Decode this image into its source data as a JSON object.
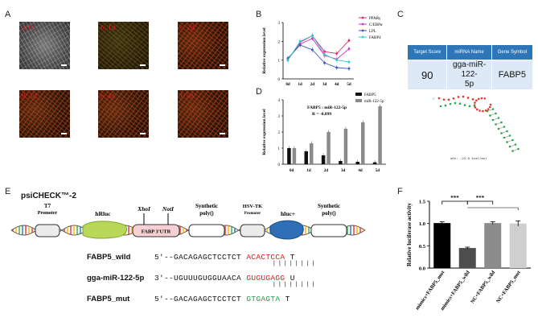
{
  "panels": {
    "A": "A",
    "B": "B",
    "C": "C",
    "D": "D",
    "E": "E",
    "F": "F"
  },
  "panel_a": {
    "images": [
      {
        "label": "a: 0d"
      },
      {
        "label": "b: 1d"
      },
      {
        "label": "c: 2d"
      },
      {
        "label": "d: 3d"
      },
      {
        "label": "e: 4d"
      },
      {
        "label": "f: 5d"
      }
    ]
  },
  "panel_c": {
    "headers": [
      "Target Score",
      "miRNA Name",
      "Gene Symbol"
    ],
    "row": [
      "90",
      "gga-miR-122-\n5p",
      "FABP5"
    ],
    "mfe": "mfe: -22.9 kcal/mol",
    "colors": {
      "header": "#2e76b7",
      "cell": "#dde9f7"
    }
  },
  "panel_e": {
    "vector_name": "psiCHECK™-2",
    "elements": {
      "t7": "T7",
      "t7_sub": "Promoter",
      "hrluc": "hRluc",
      "xhoi": "XhoI",
      "noti": "NotI",
      "utr": "FABP 3′UTR",
      "polya1": "Synthetic",
      "polya1_sub": "poly()",
      "hsvtk": "HSV-TK",
      "hsvtk_sub": "Promoter",
      "hluc": "hluc+",
      "polya2": "Synthetic",
      "polya2_sub": "poly()"
    },
    "sequences": [
      {
        "name": "FABP5_wild",
        "prefix": "5′--GACAGAGCTCCTCT",
        "site": "ACACTCCA",
        "suffix": "T",
        "site_color": "#e0181b"
      },
      {
        "name": "gga-miR-122-5p",
        "prefix": "3′--UGUUUGUGGUAACA",
        "site": "GUGUGAGG",
        "suffix": "U",
        "site_color": "#e0181b"
      },
      {
        "name": "FABP5_mut",
        "prefix": "5′--GACAGAGCTCCTCT",
        "site": "GTGAGTA",
        "suffix": "T",
        "site_color": "#1aa54a"
      }
    ],
    "pairing": "| | | | | | | |"
  },
  "chart_data": [
    {
      "type": "line",
      "panel": "B",
      "categories": [
        "0d",
        "1d",
        "2d",
        "3d",
        "4d",
        "5d"
      ],
      "series": [
        {
          "name": "PPARγ",
          "color": "#d6336c",
          "values": [
            1.0,
            1.95,
            2.3,
            1.45,
            1.35,
            2.05
          ]
        },
        {
          "name": "C/EBPα",
          "color": "#cc33cc",
          "values": [
            1.05,
            1.85,
            2.15,
            1.25,
            1.05,
            1.6
          ]
        },
        {
          "name": "LPL",
          "color": "#3456c8",
          "values": [
            1.1,
            1.8,
            1.55,
            0.85,
            0.6,
            0.55
          ]
        },
        {
          "name": "FABP4",
          "color": "#33cccc",
          "values": [
            1.0,
            2.0,
            2.3,
            1.3,
            1.0,
            0.9
          ]
        }
      ],
      "ylabel": "Relative expression  level",
      "ylim": [
        0,
        3
      ],
      "yticks": [
        "0",
        "1",
        "2",
        "3"
      ],
      "legend": "top-right",
      "grid": false
    },
    {
      "type": "bar",
      "panel": "D",
      "categories": [
        "0d",
        "1d",
        "2d",
        "3d",
        "4d",
        "5d"
      ],
      "series": [
        {
          "name": "FABP5",
          "color": "#111111",
          "values": [
            1.0,
            0.8,
            0.55,
            0.2,
            0.15,
            0.12
          ]
        },
        {
          "name": "miR-122-5p",
          "color": "#8a8a8a",
          "values": [
            1.0,
            1.3,
            2.0,
            2.2,
            2.6,
            3.6
          ]
        }
      ],
      "annotation_title": "FABP5 : miR-122-5p",
      "annotation_r": "R = -0.899",
      "ylabel": "Relative expression  level",
      "ylim": [
        0,
        4
      ],
      "yticks": [
        "0",
        "1",
        "2",
        "3",
        "4"
      ],
      "legend": "top-right",
      "grid": false
    },
    {
      "type": "bar",
      "panel": "F",
      "categories": [
        "mimics+FABP5_mut",
        "mimics+FABP5_wild",
        "NC+FABP5_wild",
        "NC+FABP5_mut"
      ],
      "values": [
        1.01,
        0.45,
        1.01,
        1.0
      ],
      "errors": [
        0.03,
        0.02,
        0.03,
        0.06
      ],
      "colors": [
        "#000000",
        "#4d4d4d",
        "#8c8c8c",
        "#cfcfcf"
      ],
      "ylabel": "Relative  luciferase activity",
      "ylim": [
        0,
        1.5
      ],
      "yticks": [
        "0.0",
        "0.5",
        "1.0",
        "1.5"
      ],
      "significance": [
        "***",
        "***"
      ]
    }
  ]
}
